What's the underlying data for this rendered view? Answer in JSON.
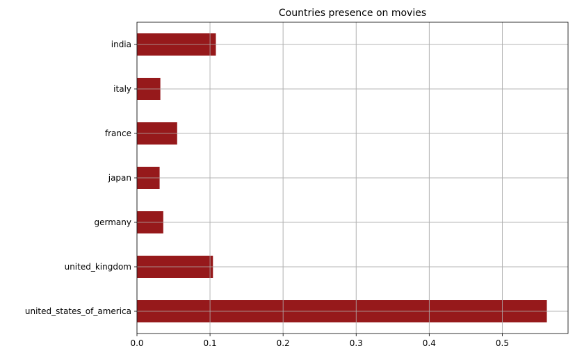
{
  "chart_data": {
    "type": "bar",
    "orientation": "horizontal",
    "title": "Countries presence on movies",
    "xlabel": "",
    "ylabel": "",
    "categories": [
      "india",
      "italy",
      "france",
      "japan",
      "germany",
      "united_kingdom",
      "united_states_of_america"
    ],
    "values": [
      0.108,
      0.032,
      0.055,
      0.031,
      0.036,
      0.104,
      0.561
    ],
    "xlim": [
      0,
      0.59
    ],
    "xticks": [
      0,
      0.1,
      0.2,
      0.3,
      0.4,
      0.5
    ],
    "xtick_labels": [
      "0.0",
      "0.1",
      "0.2",
      "0.3",
      "0.4",
      "0.5"
    ],
    "bar_color": "#96191b",
    "grid": true,
    "legend": "none"
  }
}
